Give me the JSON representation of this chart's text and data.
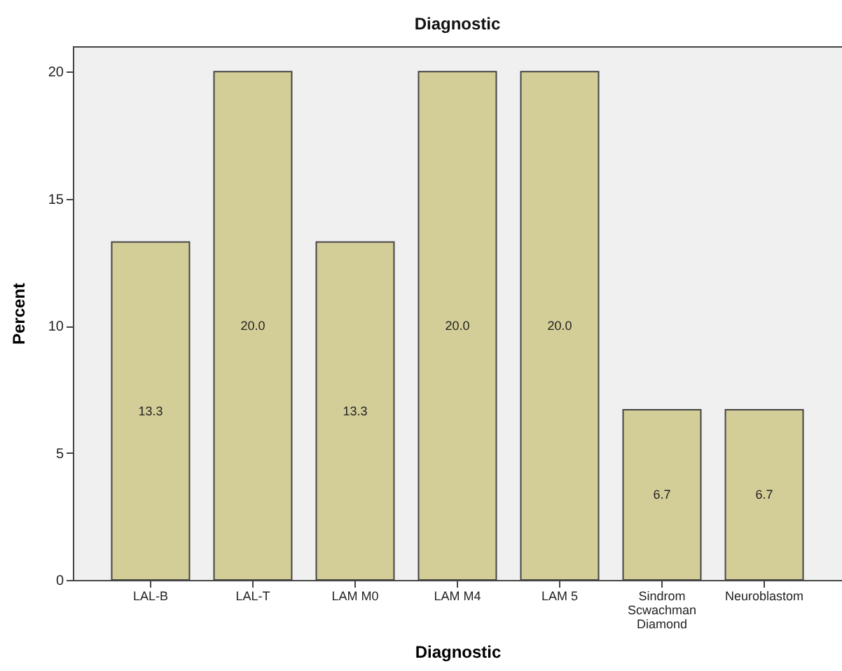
{
  "chart_data": {
    "type": "bar",
    "title": "Diagnostic",
    "xlabel": "Diagnostic",
    "ylabel": "Percent",
    "categories": [
      "LAL-B",
      "LAL-T",
      "LAM M0",
      "LAM M4",
      "LAM 5",
      "Sindrom Scwachman Diamond",
      "Neuroblastom"
    ],
    "values": [
      13.3,
      20.0,
      13.3,
      20.0,
      20.0,
      6.7,
      6.7
    ],
    "value_labels": [
      "13.3",
      "20.0",
      "13.3",
      "20.0",
      "20.0",
      "6.7",
      "6.7"
    ],
    "color": "#d3ce97",
    "ylim": [
      0,
      21
    ],
    "yticks": [
      0,
      5,
      10,
      15,
      20
    ],
    "grid": false
  }
}
